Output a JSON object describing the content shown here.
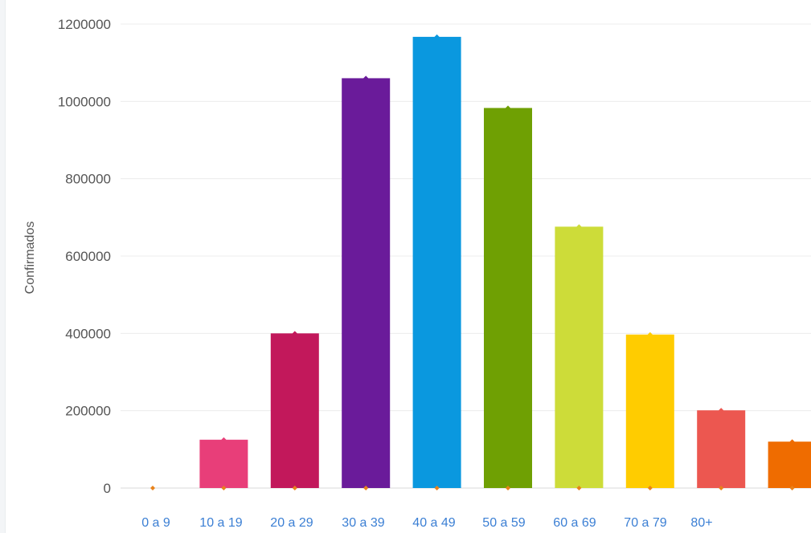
{
  "chart_data": {
    "type": "bar",
    "title": "",
    "xlabel": "",
    "ylabel": "Confirmados",
    "ylim": [
      0,
      1200000
    ],
    "yticks": [
      0,
      200000,
      400000,
      600000,
      800000,
      1000000,
      1200000
    ],
    "ytick_labels": [
      "0",
      "200000",
      "400000",
      "600000",
      "800000",
      "1000000",
      "1200000"
    ],
    "grid": true,
    "legend": "none",
    "categories": [
      "0 a 9",
      "10 a 19",
      "20 a 29",
      "30 a 39",
      "40 a 49",
      "50 a 59",
      "60 a 69",
      "70 a 79",
      "80+",
      "",
      ""
    ],
    "values": [
      0,
      125000,
      400000,
      1060000,
      1167000,
      983000,
      676000,
      397000,
      201000,
      120000,
      0
    ],
    "colors": [
      "#6ea3dd",
      "#e83e79",
      "#c2185b",
      "#6a1b9a",
      "#0a98df",
      "#6fa003",
      "#cddc39",
      "#ffcc00",
      "#ec5750",
      "#ef6c00",
      "#ffffff"
    ]
  }
}
